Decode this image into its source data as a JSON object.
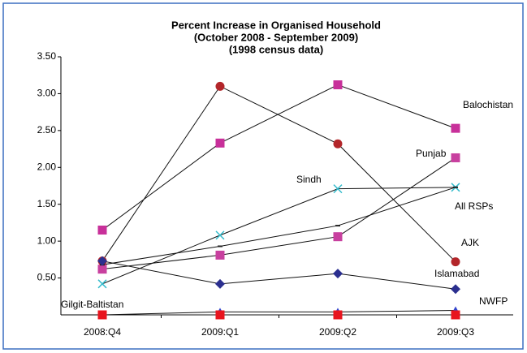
{
  "chart_data": {
    "type": "line",
    "title": [
      "Percent Increase in Organised Household",
      "(October 2008 - September 2009)",
      "(1998 census data)"
    ],
    "categories": [
      "2008:Q4",
      "2009:Q1",
      "2009:Q2",
      "2009:Q3"
    ],
    "ylim": [
      0,
      3.5
    ],
    "yticks": [
      {
        "value": 0.5,
        "label": "0.50"
      },
      {
        "value": 1,
        "label": "1.00"
      },
      {
        "value": 1.5,
        "label": "1.50"
      },
      {
        "value": 2,
        "label": "2.00"
      },
      {
        "value": 2.5,
        "label": "2.50"
      },
      {
        "value": 3,
        "label": "3.00"
      },
      {
        "value": 3.5,
        "label": "3.50"
      }
    ],
    "series": [
      {
        "name": "Balochistan",
        "color": "#c8309a",
        "marker": "square",
        "values": [
          1.15,
          2.33,
          3.12,
          2.53
        ]
      },
      {
        "name": "AJK",
        "color": "#b3262a",
        "marker": "circle",
        "values": [
          0.73,
          3.1,
          2.32,
          0.72
        ]
      },
      {
        "name": "Punjab",
        "color": "#c8409f",
        "marker": "square",
        "values": [
          0.62,
          0.81,
          1.06,
          2.13
        ]
      },
      {
        "name": "Sindh",
        "color": "#33bbcc",
        "marker": "x",
        "values": [
          0.42,
          1.08,
          1.71,
          1.73
        ]
      },
      {
        "name": "All RSPs",
        "color": "#222222",
        "marker": "dash",
        "values": [
          0.68,
          0.93,
          1.21,
          1.73
        ]
      },
      {
        "name": "Islamabad",
        "color": "#2b2f8f",
        "marker": "diamond",
        "values": [
          0.73,
          0.42,
          0.56,
          0.35
        ]
      },
      {
        "name": "NWFP",
        "color": "#3344cc",
        "marker": "triangle",
        "values": [
          0,
          0.04,
          0.04,
          0.06
        ]
      },
      {
        "name": "Gilgit-Baltistan",
        "color": "#e8141e",
        "marker": "square",
        "values": [
          0,
          0,
          0,
          0
        ]
      }
    ]
  }
}
